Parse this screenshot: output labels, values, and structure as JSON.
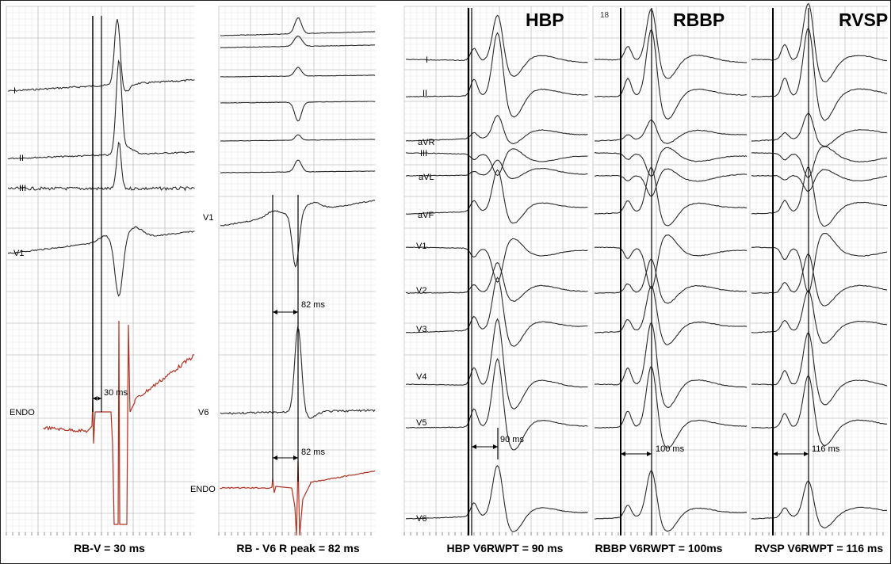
{
  "panels": [
    {
      "id": "p1",
      "caption": "RB-V = 30 ms",
      "leads": [
        "I",
        "II",
        "III",
        "V1",
        "ENDO"
      ],
      "measurements": [
        "30 ms"
      ]
    },
    {
      "id": "p2",
      "caption": "RB - V6 R peak = 82 ms",
      "leads": [
        "V1",
        "V6",
        "ENDO"
      ],
      "measurements": [
        "82 ms",
        "82 ms"
      ]
    },
    {
      "id": "p3",
      "title": "HBP",
      "caption": "HBP V6RWPT = 90 ms",
      "leads": [
        "I",
        "II",
        "aVR",
        "III",
        "aVL",
        "aVF",
        "V1",
        "V2",
        "V3",
        "V4",
        "V5",
        "V6"
      ],
      "measurements": [
        "90 ms"
      ]
    },
    {
      "id": "p4",
      "title": "RBBP",
      "caption": "RBBP V6RWPT = 100ms",
      "frame_number": "18",
      "measurements": [
        "100 ms"
      ]
    },
    {
      "id": "p5",
      "title": "RVSP",
      "caption": "RVSP V6RWPT = 116 ms",
      "measurements": [
        "116 ms"
      ]
    }
  ],
  "colors": {
    "grid_minor": "#e6e6e6",
    "grid_major": "#c4c4c4",
    "trace": "#2a2a2a",
    "endo_trace": "#b03020",
    "marker": "#000000"
  }
}
